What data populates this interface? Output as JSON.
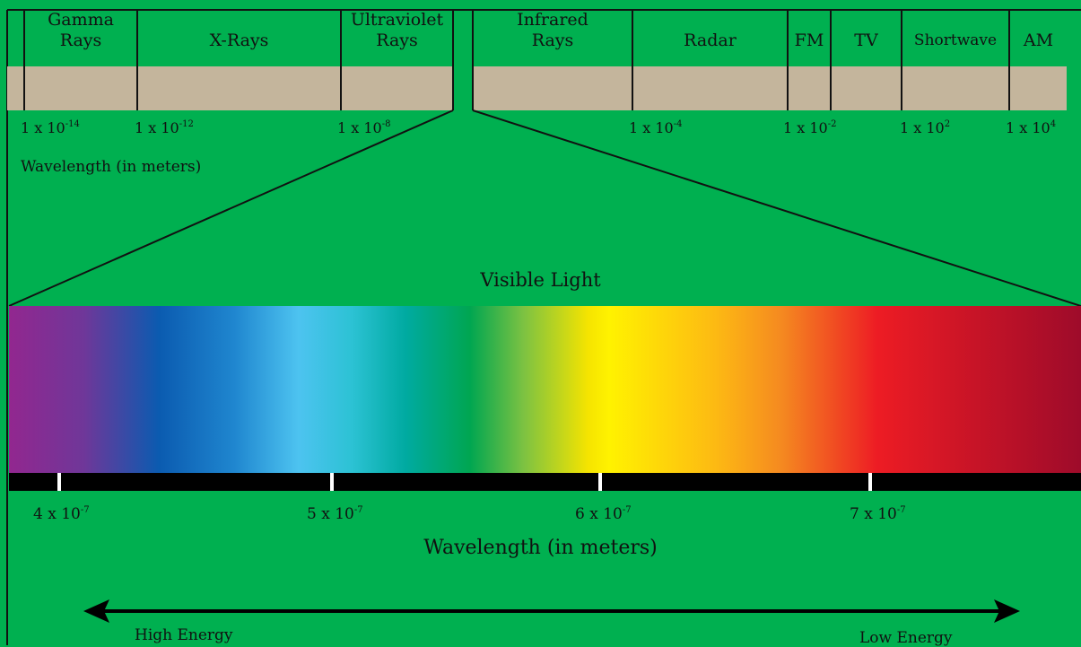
{
  "spectrum": {
    "bands": [
      {
        "line1": "Gamma",
        "line2": "Rays"
      },
      {
        "line1": "",
        "line2": "X-Rays"
      },
      {
        "line1": "Ultraviolet",
        "line2": "Rays"
      },
      {
        "line1": "Infrared",
        "line2": "Rays"
      },
      {
        "line1": "",
        "line2": "Radar"
      },
      {
        "line1": "",
        "line2": "FM"
      },
      {
        "line1": "",
        "line2": "TV"
      },
      {
        "line1": "",
        "line2": "Shortwave"
      },
      {
        "line1": "",
        "line2": "AM"
      }
    ],
    "ticks": [
      {
        "mant": "1 x 10",
        "exp": "-14"
      },
      {
        "mant": "1 x 10",
        "exp": "-12"
      },
      {
        "mant": "1 x 10",
        "exp": "-8"
      },
      {
        "mant": "1 x 10",
        "exp": "-4"
      },
      {
        "mant": "1 x 10",
        "exp": "-2"
      },
      {
        "mant": "1 x 10",
        "exp": "2"
      },
      {
        "mant": "1 x 10",
        "exp": "4"
      }
    ],
    "axis_label": "Wavelength (in meters)"
  },
  "visible": {
    "title": "Visible Light",
    "ticks": [
      {
        "mant": "4 x 10",
        "exp": "-7"
      },
      {
        "mant": "5 x 10",
        "exp": "-7"
      },
      {
        "mant": "6 x 10",
        "exp": "-7"
      },
      {
        "mant": "7 x 10",
        "exp": "-7"
      }
    ],
    "axis_label": "Wavelength (in meters)"
  },
  "energy": {
    "high": "High Energy",
    "low": "Low Energy"
  },
  "colors": {
    "background": "#00b050",
    "band_fill": "#c4b59c",
    "line": "#111111"
  }
}
